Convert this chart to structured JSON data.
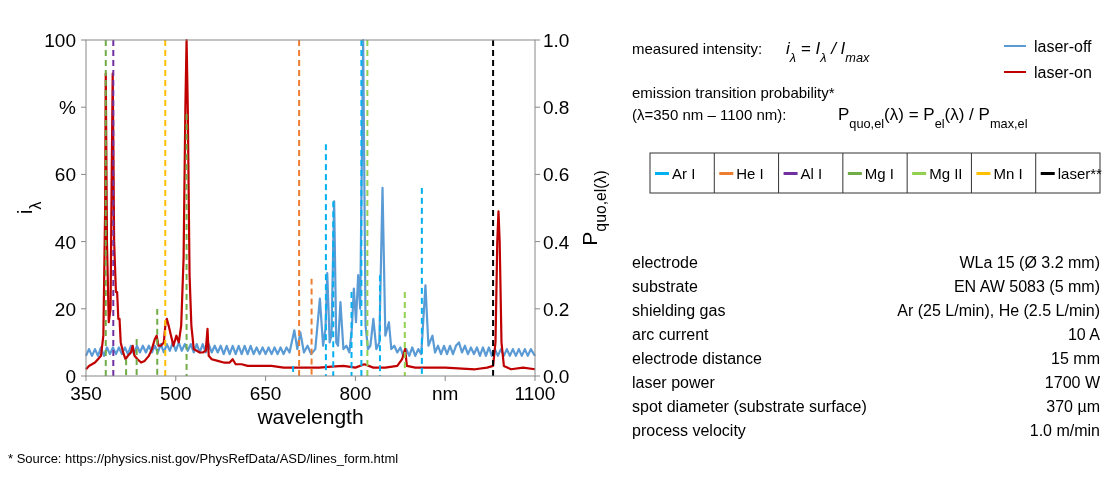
{
  "chart_data": [
    {
      "type": "line",
      "xlabel": "wavelength",
      "ylabel": "i$_{λ}$",
      "y2label": "P$_{quo,el(λ)}$",
      "xlim": [
        350,
        1100
      ],
      "xticks": [
        350,
        500,
        650,
        800,
        {
          "value": 950,
          "label": "nm"
        },
        1100
      ],
      "ylim": [
        0,
        100
      ],
      "yticks": [
        0,
        20,
        40,
        60,
        {
          "value": 80,
          "label": "%"
        },
        100
      ],
      "y2lim": [
        0,
        1
      ],
      "y2ticks": [
        {
          "value": 0,
          "label": "0.0"
        },
        {
          "value": 0.2,
          "label": "0.2"
        },
        {
          "value": 0.4,
          "label": "0.4"
        },
        {
          "value": 0.6,
          "label": "0.6"
        },
        {
          "value": 0.8,
          "label": "0.8"
        },
        {
          "value": 1,
          "label": "1.0"
        }
      ],
      "legend": "right",
      "grid": false,
      "annotations": [
        "* Source: https://physics.nist.gov/PhysRefData/ASD/lines_form.html"
      ],
      "series": [
        {
          "name": "Ar I",
          "type": "bar",
          "axis": "y2",
          "line_style": "dashed",
          "marker": "none",
          "color": "#00b0f0",
          "x": [
            696,
            750.7,
            763,
            793.5,
            810,
            841,
            911
          ],
          "values": [
            0.03,
            0.69,
            0.52,
            0.25,
            1.0,
            0.3,
            0.56
          ]
        },
        {
          "name": "He I",
          "type": "bar",
          "axis": "y2",
          "line_style": "dashed",
          "marker": "none",
          "color": "#ed7d31",
          "x": [
            706,
            726.8
          ],
          "values": [
            1.0,
            0.29
          ]
        },
        {
          "name": "Al I",
          "type": "bar",
          "axis": "y2",
          "line_style": "dashed",
          "marker": "none",
          "color": "#7030a0",
          "x": [
            395.6
          ],
          "values": [
            1.0
          ]
        },
        {
          "name": "Mg I",
          "type": "bar",
          "axis": "y2",
          "line_style": "dashed",
          "marker": "none",
          "color": "#70ad47",
          "x": [
            383,
            417,
            434.6,
            469,
            518
          ],
          "values": [
            1.0,
            0.05,
            0.11,
            0.2,
            0.78
          ]
        },
        {
          "name": "Mg II",
          "type": "bar",
          "axis": "y2",
          "line_style": "dashed",
          "marker": "none",
          "color": "#92d050",
          "x": [
            820,
            882.5
          ],
          "values": [
            1.0,
            0.25
          ]
        },
        {
          "name": "Mn I",
          "type": "bar",
          "axis": "y2",
          "line_style": "dashed",
          "marker": "none",
          "color": "#ffc000",
          "x": [
            482.4
          ],
          "values": [
            1.0
          ]
        },
        {
          "name": "laser**",
          "type": "bar",
          "axis": "y2",
          "line_style": "dashed",
          "marker": "none",
          "color": "#000000",
          "x": [
            1030
          ],
          "values": [
            1.0
          ]
        },
        {
          "name": "laser-off",
          "type": "line",
          "line_style": "solid",
          "marker": "none",
          "color": "#5b9bd5",
          "x": [
            350,
            355,
            360,
            365,
            370,
            375,
            380,
            385,
            390,
            395,
            400,
            405,
            410,
            415,
            420,
            425,
            430,
            435,
            440,
            445,
            450,
            455,
            460,
            465,
            470,
            475,
            480,
            485,
            490,
            495,
            500,
            505,
            510,
            515,
            520,
            525,
            530,
            535,
            540,
            545,
            550,
            555,
            560,
            565,
            570,
            575,
            580,
            585,
            590,
            595,
            600,
            605,
            610,
            615,
            620,
            625,
            630,
            635,
            640,
            645,
            650,
            655,
            660,
            665,
            670,
            675,
            680,
            685,
            690,
            698,
            703,
            708,
            714,
            720,
            726,
            733,
            740.7,
            746,
            750,
            753,
            757,
            760,
            764.5,
            768,
            771,
            775,
            780,
            785,
            790,
            794,
            797.4,
            801,
            804.6,
            808,
            813,
            817,
            821,
            825,
            830,
            835,
            840,
            845.3,
            850,
            856,
            860,
            865,
            870,
            875,
            880,
            885,
            890,
            895,
            900,
            905,
            910,
            917,
            922,
            928.7,
            933,
            938,
            943,
            948,
            953,
            958,
            963,
            968,
            973,
            978,
            983,
            988,
            993,
            998,
            1003,
            1008,
            1013,
            1018,
            1023,
            1028,
            1033,
            1038,
            1043,
            1048,
            1053,
            1058,
            1063,
            1068,
            1073,
            1078,
            1083,
            1088,
            1093,
            1100
          ],
          "values": [
            6,
            8,
            6,
            8,
            6,
            8.5,
            6,
            8.5,
            6.5,
            8.5,
            6.5,
            8.5,
            6.5,
            8.5,
            6.5,
            9,
            6.5,
            9,
            7,
            9,
            7,
            9,
            7,
            9,
            7,
            9.5,
            7,
            9.5,
            7.5,
            10,
            7.5,
            10,
            7.5,
            9.5,
            7.5,
            9.5,
            7,
            9.5,
            7,
            9.5,
            7,
            9.5,
            7,
            9,
            7,
            9,
            6.5,
            9,
            6.5,
            9,
            6.5,
            9,
            6.5,
            9,
            6.5,
            9,
            6.5,
            8.5,
            6.5,
            8.5,
            6.5,
            8.5,
            6.5,
            8.5,
            6.5,
            8.5,
            6.5,
            8.5,
            7,
            13.6,
            8,
            13,
            7,
            9,
            6.5,
            8,
            23,
            9,
            14,
            30.6,
            10,
            12,
            52,
            10,
            9,
            22,
            8,
            9,
            7,
            14,
            26,
            16,
            30,
            20,
            100,
            15,
            8,
            9,
            17,
            8,
            10,
            56,
            12,
            16,
            8,
            9,
            7,
            8.5,
            6,
            8,
            6,
            8.5,
            6,
            8,
            6.5,
            27,
            9,
            12,
            7,
            9,
            6.5,
            9,
            6.5,
            9,
            6.5,
            9,
            10,
            7,
            9,
            6.5,
            8.5,
            6.5,
            8.5,
            6,
            8.5,
            6,
            8.5,
            6,
            8,
            6,
            8,
            6,
            8,
            6,
            8,
            6,
            8,
            6,
            8,
            6,
            8,
            6
          ]
        },
        {
          "name": "laser-on",
          "type": "line",
          "line_style": "solid",
          "marker": "none",
          "color": "#c00000",
          "x": [
            350,
            355,
            360,
            365,
            370,
            375,
            379,
            382,
            383,
            385,
            388,
            391,
            393,
            394.6,
            397,
            400,
            402,
            404,
            406,
            408,
            412,
            416,
            420,
            425,
            428,
            431,
            436,
            442,
            448,
            455,
            460,
            465,
            468,
            471,
            475,
            480,
            483,
            485,
            488,
            492,
            496,
            501,
            505,
            509,
            513,
            516,
            518,
            520,
            523,
            526,
            530,
            535,
            540,
            545,
            550,
            553,
            555,
            560,
            570,
            580,
            590,
            595,
            600,
            610,
            620,
            640,
            660,
            680,
            700,
            720,
            740,
            760,
            780,
            800,
            815,
            830,
            850,
            870,
            878,
            883,
            886,
            900,
            950,
            1000,
            1020,
            1030,
            1034,
            1037,
            1039,
            1041,
            1044,
            1048,
            1060,
            1080,
            1100
          ],
          "values": [
            2,
            3,
            3.5,
            4,
            5,
            6,
            12,
            50,
            90,
            40,
            16,
            20,
            60,
            90,
            40,
            25,
            25,
            17,
            17,
            10,
            7,
            5,
            6,
            7,
            9,
            6,
            5,
            4,
            4.5,
            6,
            8,
            11,
            12,
            9,
            9,
            10,
            16,
            17,
            15,
            12,
            9,
            12,
            10,
            15,
            35,
            80,
            100,
            80,
            30,
            15,
            8,
            7.5,
            7,
            7,
            7.5,
            14,
            6,
            5,
            4.5,
            4,
            4,
            5,
            3.5,
            3.5,
            3,
            3,
            3,
            2.5,
            2.5,
            2.5,
            2.5,
            2.8,
            3,
            2.5,
            3.5,
            2.5,
            2.5,
            3,
            5,
            8,
            3,
            2.5,
            2.5,
            2,
            2.5,
            3,
            10,
            40,
            49,
            40,
            10,
            3,
            2,
            2.5,
            2
          ]
        }
      ]
    },
    {
      "type": "other",
      "annotations": [
        "measured intensity:",
        "i$_{λ}$ = I$_{λ}$ / I$_{max}$",
        "emission transition probability*",
        "(λ=350 nm – 1100 nm):",
        "P$_{quo,el}$(λ) = P$_{el}$(λ) / P$_{max,el}$"
      ],
      "cell_labels": [
        [
          "electrode",
          "WLa 15 (Ø 3.2 mm)"
        ],
        [
          "substrate",
          "EN AW 5083 (5 mm)"
        ],
        [
          "shielding gas",
          "Ar (25 L/min), He (2.5 L/min)"
        ],
        [
          "arc current",
          "10 A"
        ],
        [
          "electrode distance",
          "15 mm"
        ],
        [
          "laser power",
          "1700 W"
        ],
        [
          "spot diameter (substrate surface)",
          "370 µm"
        ],
        [
          "process velocity",
          "1.0 m/min"
        ]
      ]
    }
  ]
}
